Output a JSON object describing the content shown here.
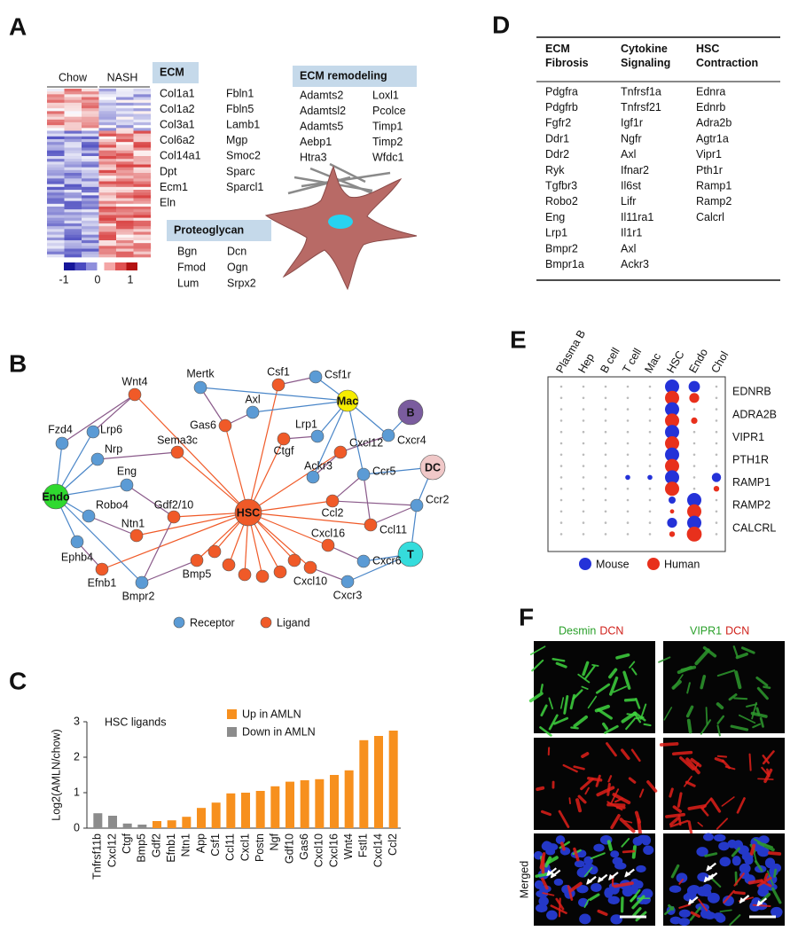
{
  "panel_a": {
    "label": "A",
    "groups": [
      "Chow",
      "NASH"
    ],
    "colorbar_ticks": [
      -1,
      0,
      1
    ],
    "ecm": {
      "title": "ECM",
      "col1": [
        "Col1a1",
        "Col1a2",
        "Col3a1",
        "Col6a2",
        "Col14a1",
        "Dpt",
        "Ecm1",
        "Eln"
      ],
      "col2": [
        "Fbln1",
        "Fbln5",
        "Lamb1",
        "Mgp",
        "Smoc2",
        "Sparc",
        "Sparcl1"
      ]
    },
    "ecm_remodeling": {
      "title": "ECM remodeling",
      "col1": [
        "Adamts2",
        "Adamtsl2",
        "Adamts5",
        "Aebp1",
        "Htra3"
      ],
      "col2": [
        "Loxl1",
        "Pcolce",
        "Timp1",
        "Timp2",
        "Wfdc1"
      ]
    },
    "proteoglycan": {
      "title": "Proteoglycan",
      "col1": [
        "Bgn",
        "Fmod",
        "Lum"
      ],
      "col2": [
        "Dcn",
        "Ogn",
        "Srpx2"
      ]
    }
  },
  "panel_b": {
    "label": "B",
    "nodes": [
      {
        "label": "Wnt4",
        "color": "#f05a28"
      },
      {
        "label": "Mertk",
        "color": "#5b9bd5"
      },
      {
        "label": "Csf1",
        "color": "#f05a28"
      },
      {
        "label": "Csf1r",
        "color": "#5b9bd5"
      },
      {
        "label": "Axl",
        "color": "#5b9bd5"
      },
      {
        "label": "Mac",
        "color": "#f5ec00"
      },
      {
        "label": "B",
        "color": "#7a5c9e"
      },
      {
        "label": "Fzd4",
        "color": "#5b9bd5"
      },
      {
        "label": "Lrp6",
        "color": "#5b9bd5"
      },
      {
        "label": "Nrp",
        "color": "#5b9bd5"
      },
      {
        "label": "Gas6",
        "color": "#f05a28"
      },
      {
        "label": "Lrp1",
        "color": "#5b9bd5"
      },
      {
        "label": "Cxcr4",
        "color": "#5b9bd5"
      },
      {
        "label": "Ctgf",
        "color": "#f05a28"
      },
      {
        "label": "Cxcl12",
        "color": "#f05a28"
      },
      {
        "label": "DC",
        "color": "#f0c8c8"
      },
      {
        "label": "Sema3c",
        "color": "#f05a28"
      },
      {
        "label": "Eng",
        "color": "#5b9bd5"
      },
      {
        "label": "Endo",
        "color": "#2fd92f"
      },
      {
        "label": "Robo4",
        "color": "#5b9bd5"
      },
      {
        "label": "Gdf2/10",
        "color": "#f05a28"
      },
      {
        "label": "Ntn1",
        "color": "#f05a28"
      },
      {
        "label": "HSC",
        "color": "#f05a28"
      },
      {
        "label": "Ackr3",
        "color": "#5b9bd5"
      },
      {
        "label": "Ccr5",
        "color": "#5b9bd5"
      },
      {
        "label": "Ccl2",
        "color": "#f05a28"
      },
      {
        "label": "Ccr2",
        "color": "#5b9bd5"
      },
      {
        "label": "Ccl11",
        "color": "#f05a28"
      },
      {
        "label": "Ephb4",
        "color": "#5b9bd5"
      },
      {
        "label": "T",
        "color": "#35dcdc"
      },
      {
        "label": "Cxcl16",
        "color": "#f05a28"
      },
      {
        "label": "Cxcr6",
        "color": "#5b9bd5"
      },
      {
        "label": "Efnb1",
        "color": "#f05a28"
      },
      {
        "label": "Bmpr2",
        "color": "#5b9bd5"
      },
      {
        "label": "Bmp5",
        "color": "#f05a28"
      },
      {
        "label": "Cxcl10",
        "color": "#f05a28"
      },
      {
        "label": "Cxcr3",
        "color": "#5b9bd5"
      },
      {
        "label": null,
        "color": "#f05a28"
      },
      {
        "label": null,
        "color": "#f05a28"
      },
      {
        "label": null,
        "color": "#f05a28"
      },
      {
        "label": null,
        "color": "#f05a28"
      },
      {
        "label": null,
        "color": "#f05a28"
      },
      {
        "label": null,
        "color": "#f05a28"
      }
    ],
    "legend": [
      {
        "name": "Receptor",
        "color": "#5b9bd5"
      },
      {
        "name": "Ligand",
        "color": "#f05a28"
      }
    ]
  },
  "chart_data": {
    "type": "bar",
    "label": "C",
    "title": "HSC ligands",
    "y_label": "Log2(AMLN/chow)",
    "categories": [
      "Tnfrsf11b",
      "Cxcl12",
      "Ctgf",
      "Bmp5",
      "Gdf2",
      "Efnb1",
      "Ntn1",
      "App",
      "Csf1",
      "Ccl11",
      "Cxcl1",
      "Postn",
      "Ngf",
      "Gdf10",
      "Gas6",
      "Cxcl10",
      "Cxcl16",
      "Wnt4",
      "Fstl1",
      "Cxcl14",
      "Ccl2"
    ],
    "series": [
      {
        "name": "Up in AMLN",
        "color": "#f7901e",
        "values": [
          null,
          null,
          null,
          null,
          0.2,
          0.22,
          0.32,
          0.57,
          0.72,
          0.98,
          1.0,
          1.05,
          1.18,
          1.31,
          1.35,
          1.38,
          1.5,
          1.63,
          2.48,
          2.6,
          2.75
        ]
      },
      {
        "name": "Down in AMLN",
        "color": "#8c8c8c",
        "values": [
          0.42,
          0.35,
          0.13,
          0.1,
          null,
          null,
          null,
          null,
          null,
          null,
          null,
          null,
          null,
          null,
          null,
          null,
          null,
          null,
          null,
          null,
          null
        ]
      }
    ],
    "ylim": [
      0,
      3
    ],
    "yticks": [
      0,
      1,
      2,
      3
    ]
  },
  "panel_d": {
    "label": "D",
    "headers": [
      "ECM Fibrosis",
      "Cytokine Signaling",
      "HSC Contraction"
    ],
    "columns": [
      [
        "Pdgfra",
        "Pdgfrb",
        "Fgfr2",
        "Ddr1",
        "Ddr2",
        "Ryk",
        "Tgfbr3",
        "Robo2",
        "Eng",
        "Lrp1",
        "Bmpr2",
        "Bmpr1a"
      ],
      [
        "Tnfrsf1a",
        "Tnfrsf21",
        "Igf1r",
        "Ngfr",
        "Axl",
        "Ifnar2",
        "Il6st",
        "Lifr",
        "Il11ra1",
        "Il1r1",
        "Axl",
        "Ackr3"
      ],
      [
        "Ednra",
        "Ednrb",
        "Adra2b",
        "Agtr1a",
        "Vipr1",
        "Pth1r",
        "Ramp1",
        "Ramp2",
        "Calcrl"
      ]
    ]
  },
  "panel_e": {
    "label": "E",
    "columns": [
      "Plasma B",
      "Hep",
      "B cell",
      "T cell",
      "Mac",
      "HSC",
      "Endo",
      "Chol"
    ],
    "rows": [
      "EDNRB",
      "ADRA2B",
      "VIPR1",
      "PTH1R",
      "RAMP1",
      "RAMP2",
      "CALCRL"
    ],
    "legend": [
      {
        "name": "Mouse",
        "color": "#2432d8"
      },
      {
        "name": "Human",
        "color": "#e8301c"
      }
    ],
    "dots": [
      {
        "row": 0,
        "column": 5,
        "species": 0,
        "size": 1.0
      },
      {
        "row": 0,
        "column": 5,
        "species": 1,
        "size": 1.0
      },
      {
        "row": 0,
        "column": 6,
        "species": 0,
        "size": 0.8
      },
      {
        "row": 0,
        "column": 6,
        "species": 1,
        "size": 0.7
      },
      {
        "row": 1,
        "column": 5,
        "species": 0,
        "size": 1.0
      },
      {
        "row": 1,
        "column": 5,
        "species": 1,
        "size": 1.0
      },
      {
        "row": 1,
        "column": 6,
        "species": 1,
        "size": 0.45
      },
      {
        "row": 2,
        "column": 5,
        "species": 0,
        "size": 1.0
      },
      {
        "row": 2,
        "column": 5,
        "species": 1,
        "size": 1.0
      },
      {
        "row": 3,
        "column": 5,
        "species": 0,
        "size": 1.0
      },
      {
        "row": 3,
        "column": 5,
        "species": 1,
        "size": 1.0
      },
      {
        "row": 4,
        "column": 3,
        "species": 0,
        "size": 0.35
      },
      {
        "row": 4,
        "column": 4,
        "species": 0,
        "size": 0.35
      },
      {
        "row": 4,
        "column": 5,
        "species": 0,
        "size": 1.0
      },
      {
        "row": 4,
        "column": 5,
        "species": 1,
        "size": 1.0
      },
      {
        "row": 4,
        "column": 7,
        "species": 0,
        "size": 0.65
      },
      {
        "row": 4,
        "column": 7,
        "species": 1,
        "size": 0.4
      },
      {
        "row": 5,
        "column": 5,
        "species": 0,
        "size": 0.5
      },
      {
        "row": 5,
        "column": 5,
        "species": 1,
        "size": 0.3
      },
      {
        "row": 5,
        "column": 6,
        "species": 0,
        "size": 1.0
      },
      {
        "row": 5,
        "column": 6,
        "species": 1,
        "size": 1.0
      },
      {
        "row": 6,
        "column": 5,
        "species": 0,
        "size": 0.7
      },
      {
        "row": 6,
        "column": 5,
        "species": 1,
        "size": 0.4
      },
      {
        "row": 6,
        "column": 6,
        "species": 0,
        "size": 1.0
      },
      {
        "row": 6,
        "column": 6,
        "species": 1,
        "size": 1.05
      }
    ]
  },
  "panel_f": {
    "label": "F",
    "columns": [
      {
        "stain_1": "Desmin",
        "stain_2": "DCN"
      },
      {
        "stain_1": "VIPR1",
        "stain_2": "DCN"
      }
    ],
    "row_label": "Merged"
  }
}
